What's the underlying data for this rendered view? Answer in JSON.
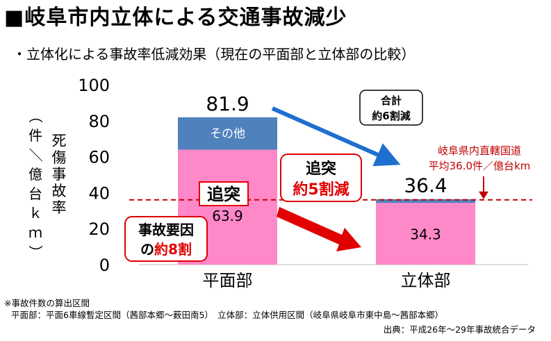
{
  "header": {
    "title": "■岐阜市内立体による交通事故減少",
    "subtitle": "・立体化による事故率低減効果（現在の平面部と立体部の比較）"
  },
  "chart_data": {
    "type": "bar",
    "stacked": true,
    "categories": [
      "平面部",
      "立体部"
    ],
    "series": [
      {
        "name": "追突",
        "values": [
          63.9,
          34.3
        ],
        "color": "#FF88C8"
      },
      {
        "name": "その他",
        "values": [
          18.0,
          2.1
        ],
        "color": "#4F81BD"
      }
    ],
    "totals": [
      81.9,
      36.4
    ],
    "total_labels": [
      "81.9",
      "36.4"
    ],
    "segment_labels": [
      "63.9",
      "34.3"
    ],
    "other_label": "その他",
    "ylim": [
      0,
      100
    ],
    "yticks": [
      "0",
      "20",
      "40",
      "60",
      "80",
      "100"
    ],
    "ytick_values": [
      0,
      20,
      40,
      60,
      80,
      100
    ],
    "ylabel_main": "死傷事故率",
    "ylabel_unit": "（件／億台ｋｍ）",
    "reference_line": {
      "value": 36.0,
      "label_line1": "岐阜県内直轄国道",
      "label_line2": "平均36.0件／億台km",
      "color": "#C00000"
    },
    "annotations": {
      "total_line1": "合計",
      "total_line2": "約6割減",
      "rearend_tag": "追突",
      "rearend_line1": "追突",
      "rearend_line2": "約5割減",
      "cause_line1": "事故要因",
      "cause_prefix": "の",
      "cause_highlight": "約8割"
    },
    "grid": false
  },
  "footer": {
    "note1": "※事故件数の算出区間",
    "note2": "平面部：平面6車線暫定区間（茜部本郷～薮田南5）　立体部：立体供用区間（岐阜県岐阜市東中島～茜部本郷）",
    "source": "出典：平成26年～29年事故統合データ"
  }
}
